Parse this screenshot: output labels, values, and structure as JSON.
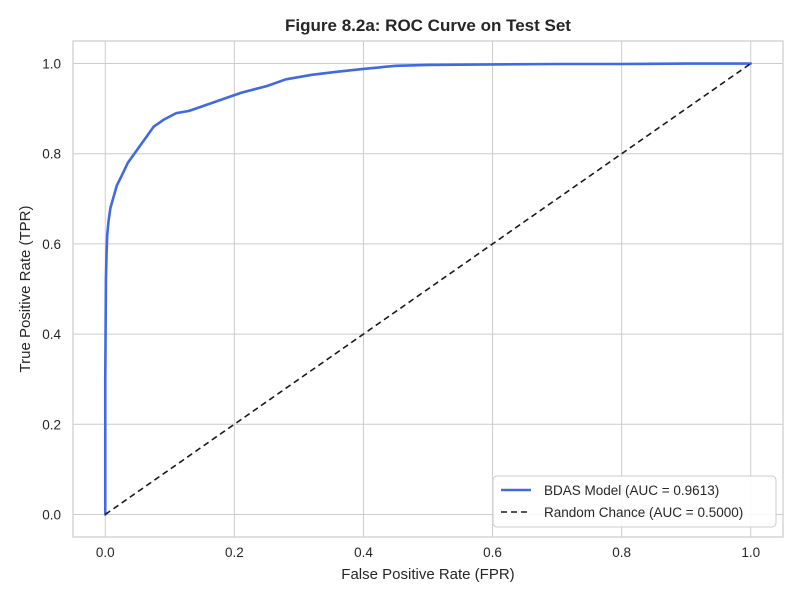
{
  "chart_data": {
    "type": "line",
    "title": "Figure 8.2a: ROC Curve on Test Set",
    "xlabel": "False Positive Rate (FPR)",
    "ylabel": "True Positive Rate (TPR)",
    "xlim": [
      -0.05,
      1.05
    ],
    "ylim": [
      -0.05,
      1.05
    ],
    "xticks": [
      0.0,
      0.2,
      0.4,
      0.6,
      0.8,
      1.0
    ],
    "yticks": [
      0.0,
      0.2,
      0.4,
      0.6,
      0.8,
      1.0
    ],
    "tick_labels_x": [
      "0.0",
      "0.2",
      "0.4",
      "0.6",
      "0.8",
      "1.0"
    ],
    "tick_labels_y": [
      "0.0",
      "0.2",
      "0.4",
      "0.6",
      "0.8",
      "1.0"
    ],
    "grid": true,
    "legend_position": "lower-right",
    "series": [
      {
        "name": "BDAS Model (AUC = 0.9613)",
        "color": "#4169e1",
        "style": "solid",
        "x": [
          0.0,
          0.0,
          0.001,
          0.002,
          0.003,
          0.005,
          0.008,
          0.012,
          0.018,
          0.025,
          0.035,
          0.045,
          0.06,
          0.075,
          0.09,
          0.11,
          0.13,
          0.15,
          0.18,
          0.21,
          0.25,
          0.28,
          0.32,
          0.36,
          0.4,
          0.45,
          0.5,
          0.6,
          0.7,
          0.8,
          0.9,
          1.0
        ],
        "y": [
          0.0,
          0.3,
          0.52,
          0.58,
          0.62,
          0.65,
          0.68,
          0.7,
          0.73,
          0.75,
          0.78,
          0.8,
          0.83,
          0.86,
          0.875,
          0.89,
          0.895,
          0.905,
          0.92,
          0.935,
          0.95,
          0.965,
          0.975,
          0.982,
          0.988,
          0.995,
          0.997,
          0.998,
          0.999,
          0.999,
          1.0,
          1.0
        ]
      },
      {
        "name": "Random Chance (AUC = 0.5000)",
        "color": "#1a1a1a",
        "style": "dashed",
        "x": [
          0.0,
          1.0
        ],
        "y": [
          0.0,
          1.0
        ]
      }
    ]
  }
}
